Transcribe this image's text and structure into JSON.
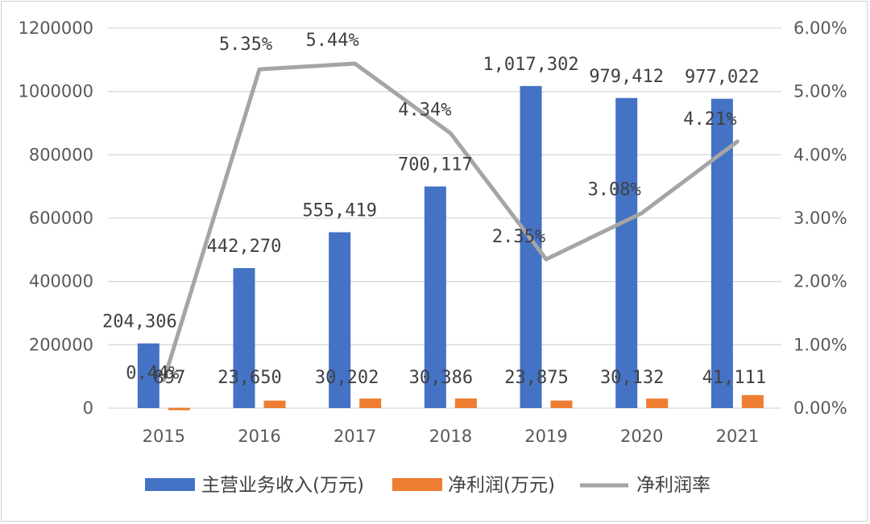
{
  "chart_data": {
    "type": "bar",
    "categories": [
      "2015",
      "2016",
      "2017",
      "2018",
      "2019",
      "2020",
      "2021"
    ],
    "series": [
      {
        "name": "主营业务收入(万元)",
        "type": "bar",
        "axis": "left",
        "color": "#4472C4",
        "values": [
          204306,
          442270,
          555419,
          700117,
          1017302,
          979412,
          977022
        ],
        "labels": [
          "204,306",
          "442,270",
          "555,419",
          "700,117",
          "1,017,302",
          "979,412",
          "977,022"
        ]
      },
      {
        "name": "净利润(万元)",
        "type": "bar",
        "axis": "left",
        "color": "#ED7D31",
        "values": [
          897,
          23650,
          30202,
          30386,
          23875,
          30132,
          41111
        ],
        "labels": [
          "897",
          "23,650",
          "30,202",
          "30,386",
          "23,875",
          "30,132",
          "41,111"
        ]
      },
      {
        "name": "净利润率",
        "type": "line",
        "axis": "right",
        "color": "#A5A5A5",
        "values": [
          0.44,
          5.35,
          5.44,
          4.34,
          2.35,
          3.08,
          4.21
        ],
        "labels": [
          "0.44%",
          "5.35%",
          "5.44%",
          "4.34%",
          "2.35%",
          "3.08%",
          "4.21%"
        ]
      }
    ],
    "y_left": {
      "min": 0,
      "max": 1200000,
      "ticks": [
        "0",
        "200000",
        "400000",
        "600000",
        "800000",
        "1000000",
        "1200000"
      ]
    },
    "y_right": {
      "min": 0,
      "max": 6,
      "ticks": [
        "0.00%",
        "1.00%",
        "2.00%",
        "3.00%",
        "4.00%",
        "5.00%",
        "6.00%"
      ]
    },
    "grid": true,
    "legend": "bottom",
    "title": "",
    "xlabel": "",
    "ylabel": ""
  }
}
